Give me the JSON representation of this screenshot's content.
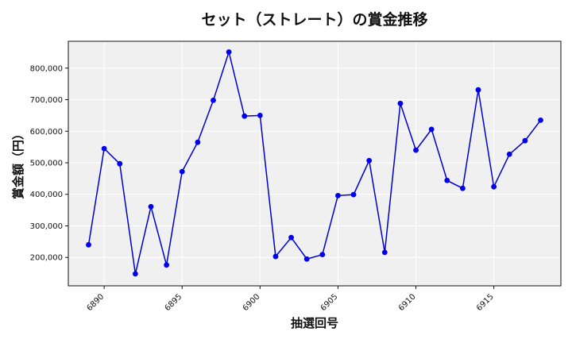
{
  "chart_data": {
    "type": "line",
    "title": "セット（ストレート）の賞金推移",
    "xlabel": "抽選回号",
    "ylabel": "賞金額（円）",
    "xlim": [
      6887.7,
      6919.3
    ],
    "ylim": [
      110000,
      885000
    ],
    "x_ticks": [
      6890,
      6895,
      6900,
      6905,
      6910,
      6915
    ],
    "y_ticks": [
      200000,
      300000,
      400000,
      500000,
      600000,
      700000,
      800000
    ],
    "y_tick_labels": [
      "200,000",
      "300,000",
      "400,000",
      "500,000",
      "600,000",
      "700,000",
      "800,000"
    ],
    "grid": true,
    "colors": {
      "line": "#0000cc",
      "marker": "#0000ee",
      "plot_bg": "#f0f0f0",
      "grid": "#ffffff"
    },
    "series": [
      {
        "x": [
          6889,
          6890,
          6891,
          6892,
          6893,
          6894,
          6895,
          6896,
          6897,
          6898,
          6899,
          6900,
          6901,
          6902,
          6903,
          6904,
          6905,
          6906,
          6907,
          6908,
          6909,
          6910,
          6911,
          6912,
          6913,
          6914,
          6915,
          6916,
          6917,
          6918
        ],
        "values": [
          240000,
          545000,
          497000,
          148000,
          361000,
          176000,
          472000,
          565000,
          698000,
          851000,
          648000,
          650000,
          203000,
          263000,
          195000,
          209000,
          396000,
          399000,
          507000,
          216000,
          688000,
          540000,
          606000,
          444000,
          419000,
          731000,
          424000,
          527000,
          570000,
          635000
        ]
      }
    ]
  }
}
